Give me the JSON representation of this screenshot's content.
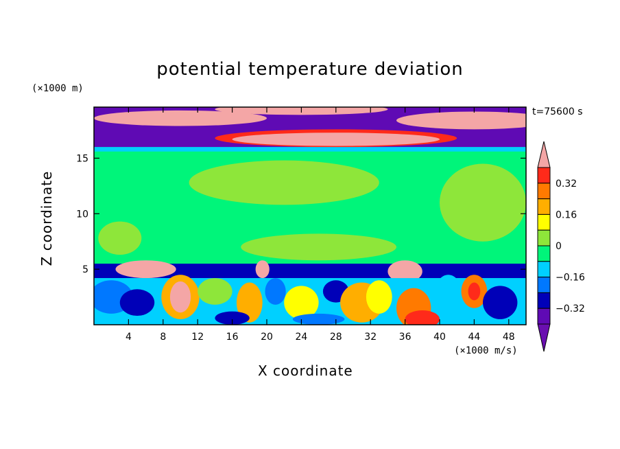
{
  "chart_data": {
    "type": "heatmap",
    "title": "potential temperature deviation",
    "xlabel": "X coordinate",
    "ylabel": "Z coordinate",
    "x_unit": "(×1000 m/s)",
    "z_unit": "(×1000 m)",
    "time_label": "t=75600 s",
    "xlim": [
      0,
      50
    ],
    "ylim": [
      0,
      19.6
    ],
    "x_ticks": [
      4,
      8,
      12,
      16,
      20,
      24,
      28,
      32,
      36,
      40,
      44,
      48
    ],
    "y_ticks": [
      5,
      10,
      15
    ],
    "colorbar": {
      "labels": [
        "0.32",
        "0.16",
        "0",
        "-0.16",
        "-0.32"
      ],
      "label_values": [
        0.32,
        0.16,
        0,
        -0.16,
        -0.32
      ],
      "levels": [
        0.4,
        0.32,
        0.24,
        0.16,
        0.08,
        0,
        -0.08,
        -0.16,
        -0.24,
        -0.32,
        -0.4
      ],
      "colors": [
        "#f4a6a6",
        "#ff2a1a",
        "#ff7a00",
        "#ffae00",
        "#ffff00",
        "#8ee63a",
        "#00f57a",
        "#00d0ff",
        "#0078ff",
        "#0000b8",
        "#5f0ab4",
        "#6a0fb0"
      ]
    }
  }
}
